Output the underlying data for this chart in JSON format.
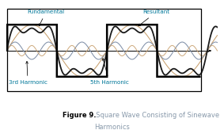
{
  "title_bold": "Figure 9.",
  "title_rest": "   Square Wave Consisting of Sinewave\nHarmonics",
  "background_color": "#ffffff",
  "border_color": "#000000",
  "fundamental_color": "#C8A06E",
  "third_harmonic_color": "#8090A8",
  "fifth_harmonic_color": "#C8A06E",
  "resultant_color": "#1a1a1a",
  "square_wave_color": "#000000",
  "xlim": [
    0.0,
    4.2
  ],
  "ylim": [
    -1.65,
    1.75
  ],
  "A1": 1.0,
  "A3": 0.333,
  "A5": 0.2,
  "ann_fontsize": 5.2,
  "caption_fontsize": 6.0,
  "ann_color": "#000000",
  "ann_color_cyan": "#007799"
}
